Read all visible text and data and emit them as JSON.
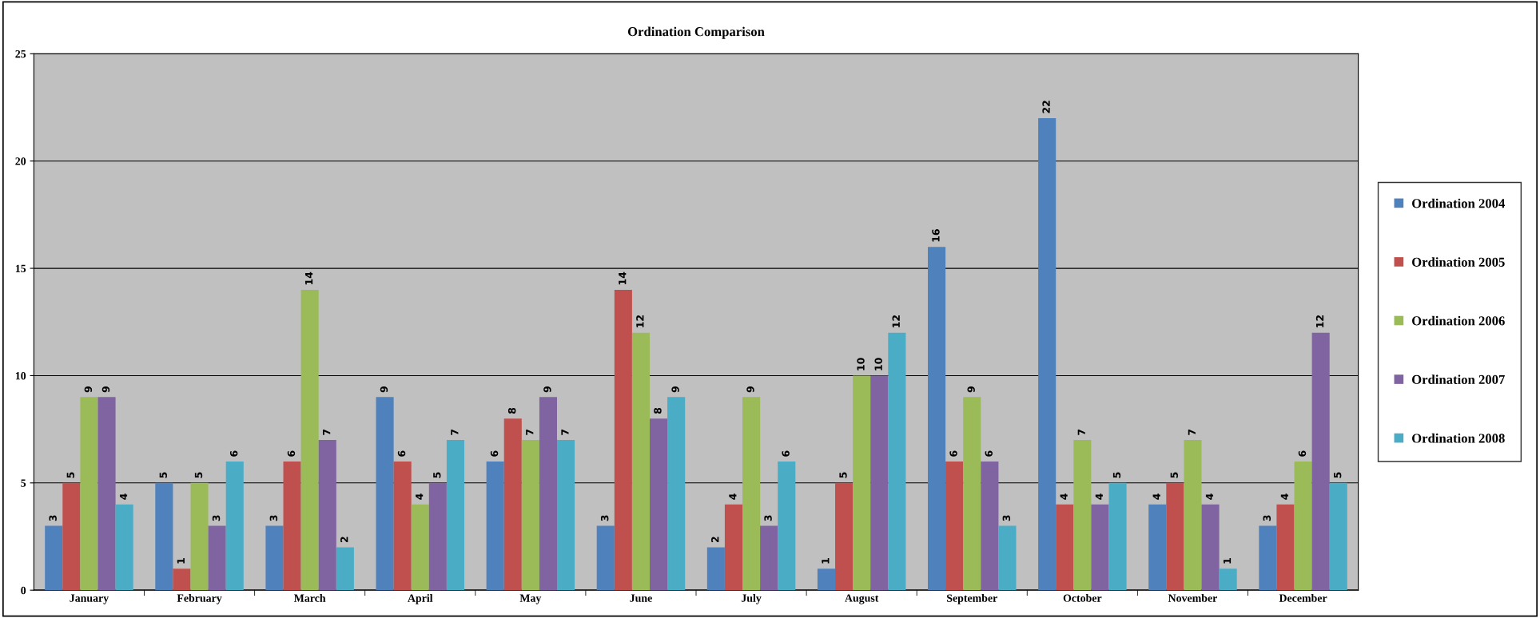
{
  "chart_data": {
    "type": "bar",
    "title": "Ordination Comparison",
    "categories": [
      "January",
      "February",
      "March",
      "April",
      "May",
      "June",
      "July",
      "August",
      "September",
      "October",
      "November",
      "December"
    ],
    "series": [
      {
        "name": "Ordination 2004",
        "color": "#4f81bd",
        "values": [
          3,
          5,
          3,
          9,
          6,
          3,
          2,
          1,
          16,
          22,
          4,
          3
        ]
      },
      {
        "name": "Ordination 2005",
        "color": "#c0504d",
        "values": [
          5,
          1,
          6,
          6,
          8,
          14,
          4,
          5,
          6,
          4,
          5,
          4
        ]
      },
      {
        "name": "Ordination 2006",
        "color": "#9bbb59",
        "values": [
          9,
          5,
          14,
          4,
          7,
          12,
          9,
          10,
          9,
          7,
          7,
          6
        ]
      },
      {
        "name": "Ordination 2007",
        "color": "#8064a2",
        "values": [
          9,
          3,
          7,
          5,
          9,
          8,
          3,
          10,
          6,
          4,
          4,
          12
        ]
      },
      {
        "name": "Ordination 2008",
        "color": "#4bacc6",
        "values": [
          4,
          6,
          2,
          7,
          7,
          9,
          6,
          12,
          3,
          5,
          1,
          5
        ]
      }
    ],
    "ylim": [
      0,
      25
    ],
    "yticks": [
      0,
      5,
      10,
      15,
      20,
      25
    ],
    "grid": "y",
    "legend": "right",
    "data_labels": true
  }
}
